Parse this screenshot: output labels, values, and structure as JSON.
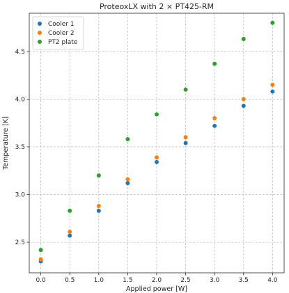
{
  "chart_data": {
    "type": "scatter",
    "title": "ProteoxLX with 2 × PT425-RM",
    "xlabel": "Applied power [W]",
    "ylabel": "Temperature [K]",
    "xlim": [
      -0.2,
      4.2
    ],
    "ylim": [
      2.18,
      4.9
    ],
    "xticks": [
      0.0,
      0.5,
      1.0,
      1.5,
      2.0,
      2.5,
      3.0,
      3.5,
      4.0
    ],
    "xtick_labels": [
      "0.0",
      "0.5",
      "1.0",
      "1.5",
      "2.0",
      "2.5",
      "3.0",
      "3.5",
      "4.0"
    ],
    "yticks": [
      2.5,
      3.0,
      3.5,
      4.0,
      4.5
    ],
    "ytick_labels": [
      "2.5",
      "3.0",
      "3.5",
      "4.0",
      "4.5"
    ],
    "grid": true,
    "legend_position": "top-left",
    "x": [
      0.0,
      0.5,
      1.0,
      1.5,
      2.0,
      2.5,
      3.0,
      3.5,
      4.0
    ],
    "series": [
      {
        "name": "Cooler 1",
        "color": "#1f77b4",
        "values": [
          2.3,
          2.57,
          2.83,
          3.12,
          3.34,
          3.54,
          3.72,
          3.93,
          4.08
        ]
      },
      {
        "name": "Cooler 2",
        "color": "#ff7f0e",
        "values": [
          2.32,
          2.61,
          2.88,
          3.16,
          3.39,
          3.6,
          3.8,
          4.0,
          4.15
        ]
      },
      {
        "name": "PT2 plate",
        "color": "#2ca02c",
        "values": [
          2.42,
          2.83,
          3.2,
          3.58,
          3.84,
          4.1,
          4.37,
          4.63,
          4.8
        ]
      }
    ]
  }
}
